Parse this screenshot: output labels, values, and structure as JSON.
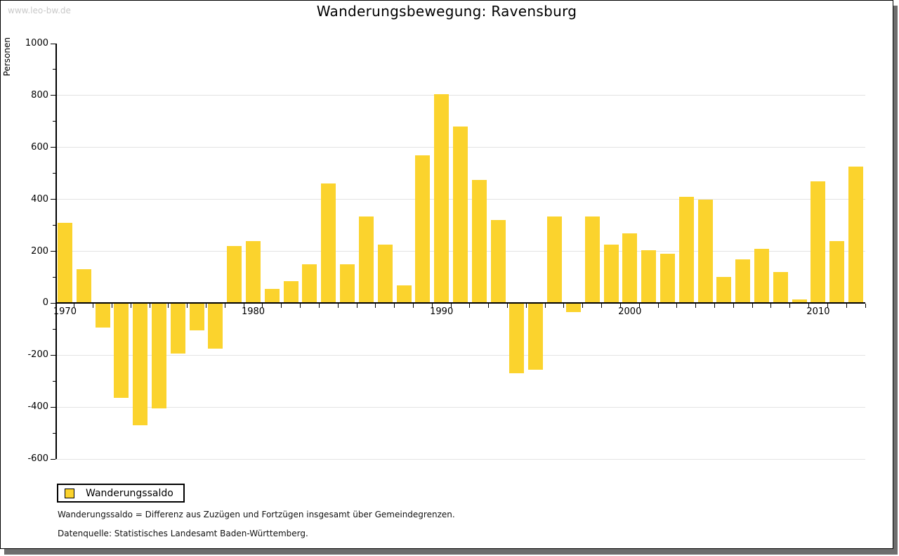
{
  "page": {
    "watermark": "www.leo-bw.de",
    "title": "Wanderungsbewegung: Ravensburg"
  },
  "chart_data": {
    "type": "bar",
    "title": "Wanderungsbewegung: Ravensburg",
    "xlabel": "",
    "ylabel": "Personen",
    "ylim": [
      -600,
      1000
    ],
    "y_major_step": 200,
    "y_minor_step": 100,
    "grid": "horizontal",
    "legend_position": "bottom-left",
    "bar_color": "#FBD32D",
    "series_name": "Wanderungssaldo",
    "categories": [
      1970,
      1971,
      1972,
      1973,
      1974,
      1975,
      1976,
      1977,
      1978,
      1979,
      1980,
      1981,
      1982,
      1983,
      1984,
      1985,
      1986,
      1987,
      1988,
      1989,
      1990,
      1991,
      1992,
      1993,
      1994,
      1995,
      1996,
      1997,
      1998,
      1999,
      2000,
      2001,
      2002,
      2003,
      2004,
      2005,
      2006,
      2007,
      2008,
      2009,
      2010,
      2011,
      2012
    ],
    "values": [
      310,
      130,
      -95,
      -365,
      -470,
      -405,
      -195,
      -105,
      -175,
      220,
      240,
      55,
      85,
      150,
      460,
      150,
      335,
      225,
      70,
      570,
      805,
      680,
      475,
      320,
      -270,
      -255,
      335,
      -35,
      335,
      225,
      270,
      205,
      190,
      410,
      400,
      100,
      170,
      210,
      120,
      15,
      470,
      240,
      525
    ],
    "x_tick_years": [
      1970,
      1980,
      1990,
      2000,
      2010
    ],
    "y_tick_labels": [
      "1000",
      "800",
      "600",
      "400",
      "200",
      "0",
      "-200",
      "-400",
      "-600"
    ]
  },
  "legend": {
    "label": "Wanderungssaldo"
  },
  "footnotes": {
    "definition": "Wanderungssaldo = Differenz aus Zuzügen und Fortzügen insgesamt über Gemeindegrenzen.",
    "source": "Datenquelle: Statistisches Landesamt Baden-Württemberg."
  }
}
